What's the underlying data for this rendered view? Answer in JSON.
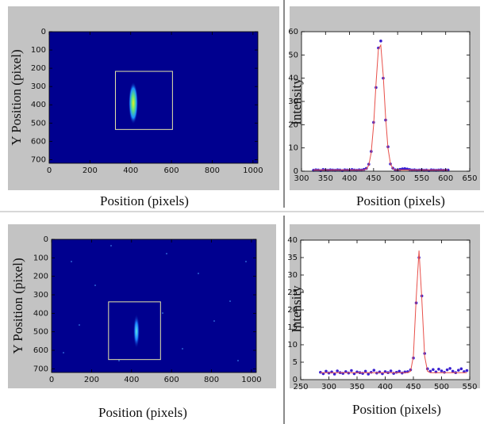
{
  "chart_data": [
    {
      "type": "image",
      "xlabel": "Position (pixels)",
      "ylabel": "Y Position (pixel)",
      "xlim": [
        0,
        1024
      ],
      "ylim": [
        0,
        720
      ],
      "y_inverted": true,
      "xticks": [
        0,
        200,
        400,
        600,
        800,
        1000
      ],
      "yticks": [
        0,
        100,
        200,
        300,
        400,
        500,
        600,
        700
      ],
      "background": "#00008f",
      "roi": {
        "x": [
          325,
          605
        ],
        "y": [
          217,
          535
        ]
      },
      "roi_color": "#e6e6a8"
    },
    {
      "type": "line",
      "xlabel": "Position (pixels)",
      "ylabel": "Intensity",
      "xlim": [
        300,
        650
      ],
      "ylim": [
        0,
        60
      ],
      "xticks": [
        300,
        350,
        400,
        450,
        500,
        550,
        600,
        650
      ],
      "yticks": [
        0,
        10,
        20,
        30,
        40,
        50,
        60
      ],
      "x": [
        325,
        330,
        335,
        340,
        345,
        350,
        355,
        360,
        365,
        370,
        375,
        380,
        385,
        390,
        395,
        400,
        405,
        410,
        415,
        420,
        425,
        430,
        435,
        440,
        445,
        450,
        455,
        460,
        465,
        470,
        475,
        480,
        485,
        490,
        495,
        500,
        505,
        510,
        515,
        520,
        525,
        530,
        535,
        540,
        545,
        550,
        555,
        560,
        565,
        570,
        575,
        580,
        585,
        590,
        595,
        600,
        605
      ],
      "series": [
        {
          "color": "#3a20d0",
          "marker": "dot",
          "values": [
            0.4,
            0.6,
            0.5,
            0.3,
            0.7,
            0.5,
            0.4,
            0.6,
            0.5,
            0.4,
            0.6,
            0.5,
            0.3,
            0.6,
            0.5,
            0.4,
            0.7,
            0.5,
            0.4,
            0.6,
            0.5,
            0.8,
            1.2,
            3.0,
            8.5,
            21,
            36,
            53,
            56,
            40,
            22,
            10.5,
            3.1,
            1.3,
            0.6,
            0.4,
            0.8,
            1.0,
            1.1,
            0.9,
            0.7,
            0.5,
            0.6,
            0.4,
            0.5,
            0.6,
            0.4,
            0.5,
            0.3,
            0.6,
            0.5,
            0.4,
            0.5,
            0.6,
            0.4,
            0.5,
            0.5
          ]
        },
        {
          "color": "#e8504a",
          "marker": "none",
          "values": [
            0.5,
            0.5,
            0.5,
            0.5,
            0.5,
            0.5,
            0.5,
            0.5,
            0.5,
            0.5,
            0.5,
            0.5,
            0.5,
            0.5,
            0.5,
            0.5,
            0.5,
            0.5,
            0.5,
            0.5,
            0.5,
            0.6,
            0.9,
            2.6,
            7.9,
            19.9,
            37.6,
            52.5,
            54.2,
            41.2,
            23.1,
            9.8,
            3.3,
            1.1,
            0.5,
            0.5,
            0.5,
            0.5,
            0.5,
            0.5,
            0.5,
            0.5,
            0.5,
            0.5,
            0.5,
            0.5,
            0.5,
            0.5,
            0.5,
            0.5,
            0.5,
            0.5,
            0.5,
            0.5,
            0.5,
            0.5,
            0.5
          ]
        }
      ]
    },
    {
      "type": "image",
      "xlabel": "Position (pixels)",
      "ylabel": "Y Position (pixel)",
      "xlim": [
        0,
        1024
      ],
      "ylim": [
        0,
        720
      ],
      "y_inverted": true,
      "xticks": [
        0,
        200,
        400,
        600,
        800,
        1000
      ],
      "yticks": [
        0,
        100,
        200,
        300,
        400,
        500,
        600,
        700
      ],
      "background": "#00008f",
      "roi": {
        "x": [
          285,
          545
        ],
        "y": [
          338,
          650
        ]
      },
      "roi_color": "#e6e6a8"
    },
    {
      "type": "line",
      "xlabel": "Position (pixels)",
      "ylabel": "Intensity",
      "xlim": [
        250,
        550
      ],
      "ylim": [
        0,
        40
      ],
      "xticks": [
        250,
        300,
        350,
        400,
        450,
        500,
        550
      ],
      "yticks": [
        0,
        5,
        10,
        15,
        20,
        25,
        30,
        35,
        40
      ],
      "x": [
        285,
        290,
        295,
        300,
        305,
        310,
        315,
        320,
        325,
        330,
        335,
        340,
        345,
        350,
        355,
        360,
        365,
        370,
        375,
        380,
        385,
        390,
        395,
        400,
        405,
        410,
        415,
        420,
        425,
        430,
        435,
        440,
        445,
        450,
        455,
        460,
        465,
        470,
        475,
        480,
        485,
        490,
        495,
        500,
        505,
        510,
        515,
        520,
        525,
        530,
        535,
        540,
        545
      ],
      "series": [
        {
          "color": "#3a20d0",
          "marker": "dot",
          "values": [
            2.1,
            1.7,
            2.4,
            1.9,
            2.2,
            1.6,
            2.5,
            2.0,
            1.8,
            2.3,
            1.9,
            2.6,
            1.7,
            2.2,
            2.0,
            1.8,
            2.4,
            1.6,
            2.1,
            2.7,
            1.9,
            2.2,
            1.7,
            2.3,
            2.0,
            2.5,
            1.8,
            2.1,
            2.4,
            1.9,
            2.2,
            2.3,
            2.8,
            6.2,
            22,
            35,
            24,
            7.5,
            3.1,
            2.4,
            2.9,
            2.2,
            3.0,
            2.5,
            2.1,
            2.8,
            3.2,
            2.4,
            2.0,
            2.7,
            3.1,
            2.3,
            2.6
          ]
        },
        {
          "color": "#e8504a",
          "marker": "none",
          "values": [
            2.0,
            2.0,
            2.0,
            2.0,
            2.0,
            2.0,
            2.0,
            2.0,
            2.0,
            2.0,
            2.0,
            2.0,
            2.0,
            2.0,
            2.0,
            2.0,
            2.0,
            2.0,
            2.0,
            2.0,
            2.0,
            2.0,
            2.0,
            2.0,
            2.0,
            2.0,
            2.0,
            2.0,
            2.0,
            2.0,
            2.0,
            2.0,
            2.4,
            6.7,
            23.2,
            37,
            23.2,
            6.7,
            2.4,
            2.0,
            2.0,
            2.0,
            2.0,
            2.0,
            2.0,
            2.0,
            2.0,
            2.0,
            2.0,
            2.0,
            2.0,
            2.0,
            2.0
          ]
        }
      ]
    }
  ]
}
